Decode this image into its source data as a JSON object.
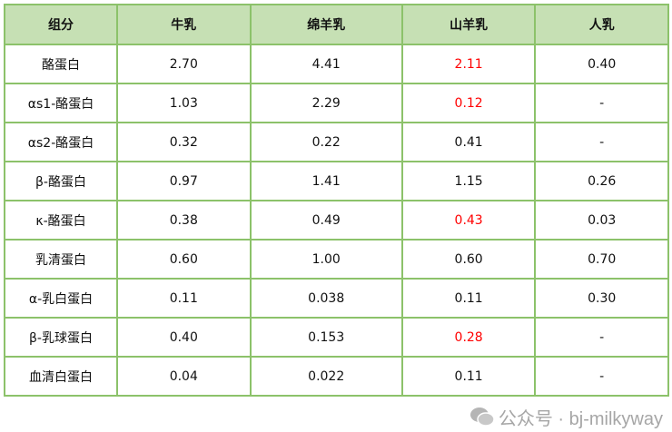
{
  "headers": [
    "组分",
    "牛乳",
    "绵羊乳",
    "山羊乳",
    "人乳"
  ],
  "rows": [
    {
      "cells": [
        "酪蛋白",
        "2.70",
        "4.41",
        "2.11",
        "0.40"
      ],
      "red": [
        3
      ]
    },
    {
      "cells": [
        "αs1-酪蛋白",
        "1.03",
        "2.29",
        "0.12",
        "-"
      ],
      "red": [
        3
      ]
    },
    {
      "cells": [
        "αs2-酪蛋白",
        "0.32",
        "0.22",
        "0.41",
        "-"
      ],
      "red": []
    },
    {
      "cells": [
        "β-酪蛋白",
        "0.97",
        "1.41",
        "1.15",
        "0.26"
      ],
      "red": []
    },
    {
      "cells": [
        "κ-酪蛋白",
        "0.38",
        "0.49",
        "0.43",
        "0.03"
      ],
      "red": [
        3
      ]
    },
    {
      "cells": [
        "乳清蛋白",
        "0.60",
        "1.00",
        "0.60",
        "0.70"
      ],
      "red": []
    },
    {
      "cells": [
        "α-乳白蛋白",
        "0.11",
        "0.038",
        "0.11",
        "0.30"
      ],
      "red": []
    },
    {
      "cells": [
        "β-乳球蛋白",
        "0.40",
        "0.153",
        "0.28",
        "-"
      ],
      "red": [
        3
      ]
    },
    {
      "cells": [
        "血清白蛋白",
        "0.04",
        "0.022",
        "0.11",
        "-"
      ],
      "red": []
    }
  ],
  "colors": {
    "highlight": "#ff0000",
    "header_bg": "#c6e0b4",
    "border": "#8cc26a"
  },
  "watermark": {
    "icon": "wechat-icon",
    "text": "公众号 · bj-milkyway"
  }
}
